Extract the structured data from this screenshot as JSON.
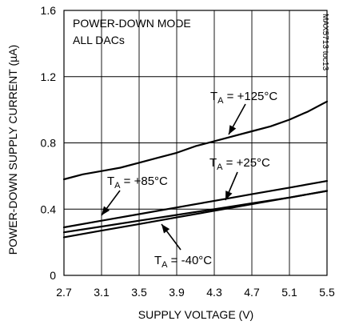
{
  "chart_data": {
    "type": "line",
    "title": "",
    "xlabel": "SUPPLY VOLTAGE (V)",
    "ylabel": "POWER-DOWN SUPPLY CURRENT (µA)",
    "xlim": [
      2.7,
      5.5
    ],
    "ylim": [
      0,
      1.6
    ],
    "x_ticks": [
      "2.7",
      "3.1",
      "3.5",
      "3.9",
      "4.3",
      "4.7",
      "5.1",
      "5.5"
    ],
    "y_ticks": [
      "0",
      "0.4",
      "0.8",
      "1.2",
      "1.6"
    ],
    "grid": true,
    "annotations": [
      "POWER-DOWN MODE",
      "ALL DACs"
    ],
    "figure_tag": "MAX5713 toc13",
    "series": [
      {
        "label": "TA = +125°C",
        "label_parts": {
          "main": "T",
          "sub": "A",
          "rest": " = +125°C"
        },
        "x": [
          2.7,
          2.9,
          3.1,
          3.3,
          3.5,
          3.7,
          3.9,
          4.1,
          4.3,
          4.5,
          4.7,
          4.9,
          5.1,
          5.3,
          5.5
        ],
        "y": [
          0.58,
          0.61,
          0.63,
          0.65,
          0.68,
          0.71,
          0.74,
          0.78,
          0.81,
          0.84,
          0.87,
          0.9,
          0.94,
          0.99,
          1.05
        ]
      },
      {
        "label": "TA = +85°C",
        "label_parts": {
          "main": "T",
          "sub": "A",
          "rest": " = +85°C"
        },
        "x": [
          2.7,
          3.1,
          3.5,
          3.9,
          4.3,
          4.7,
          5.1,
          5.5
        ],
        "y": [
          0.29,
          0.33,
          0.37,
          0.41,
          0.45,
          0.49,
          0.53,
          0.57
        ]
      },
      {
        "label": "TA = +25°C",
        "label_parts": {
          "main": "T",
          "sub": "A",
          "rest": " = +25°C"
        },
        "x": [
          2.7,
          3.1,
          3.5,
          3.9,
          4.3,
          4.7,
          5.1,
          5.5
        ],
        "y": [
          0.26,
          0.295,
          0.33,
          0.365,
          0.4,
          0.435,
          0.47,
          0.51
        ]
      },
      {
        "label": "TA = -40°C",
        "label_parts": {
          "main": "T",
          "sub": "A",
          "rest": " = -40°C"
        },
        "x": [
          2.7,
          3.1,
          3.5,
          3.9,
          4.3,
          4.7,
          5.1,
          5.5
        ],
        "y": [
          0.23,
          0.27,
          0.31,
          0.35,
          0.39,
          0.43,
          0.47,
          0.51
        ]
      }
    ]
  }
}
